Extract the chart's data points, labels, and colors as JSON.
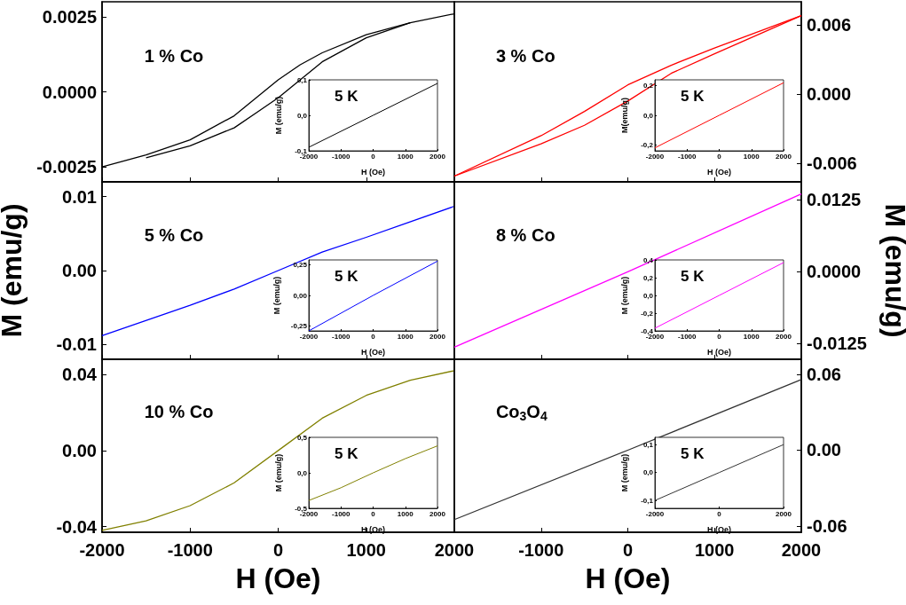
{
  "chart_data": [
    {
      "type": "line",
      "annotations": [
        "1 % Co"
      ],
      "xlim": [
        -2000,
        2000
      ],
      "xticks": [
        -2000,
        -1000,
        0,
        1000,
        2000
      ],
      "ylim": [
        -0.003,
        0.003
      ],
      "yticks": [
        -0.0025,
        {
          "value": 0,
          "label": "0.0000"
        },
        0.0025
      ],
      "tick_labels": "y",
      "series": [
        {
          "color": "#000000",
          "x": [
            -2000,
            -1500,
            -1000,
            -500,
            -250,
            0,
            250,
            500,
            1000,
            1500,
            2000
          ],
          "values": [
            -0.0025,
            -0.0021,
            -0.0016,
            -0.0008,
            -0.0002,
            0.0004,
            0.0009,
            0.0013,
            0.0019,
            0.0023,
            0.0026
          ]
        },
        {
          "color": "#000000",
          "x": [
            -1500,
            -1000,
            -500,
            -250,
            0,
            250,
            500,
            1000,
            1500
          ],
          "values": [
            -0.0022,
            -0.0018,
            -0.0012,
            -0.0007,
            -0.0002,
            0.0004,
            0.001,
            0.0018,
            0.0023
          ]
        }
      ]
    },
    {
      "type": "line",
      "annotations": [
        "5 K"
      ],
      "xlabel": "H (Oe)",
      "ylabel": "M (emu/g)",
      "xlim": [
        -2000,
        2000
      ],
      "xticks": [
        -2000,
        -1000,
        0,
        1000,
        2000
      ],
      "ylim": [
        -0.1,
        0.1
      ],
      "yticks": [
        {
          "value": -0.1,
          "label": "-0,1"
        },
        {
          "value": 0,
          "label": "0,0"
        },
        {
          "value": 0.1,
          "label": "0,1"
        }
      ],
      "series": [
        {
          "color": "#000000",
          "x": [
            -2000,
            0,
            2000
          ],
          "values": [
            -0.09,
            0,
            0.09
          ]
        }
      ]
    },
    {
      "type": "line",
      "annotations": [
        "3 % Co"
      ],
      "xlim": [
        -2000,
        2000
      ],
      "xticks": [
        -2000,
        -1000,
        0,
        1000,
        2000
      ],
      "ylim": [
        -0.0076,
        0.008
      ],
      "yticks": [
        -0.006,
        {
          "value": 0,
          "label": "0.000"
        },
        0.006
      ],
      "tick_labels": "y",
      "series": [
        {
          "color": "#ff0000",
          "x": [
            -2000,
            -1000,
            -500,
            0,
            500,
            1000,
            2000
          ],
          "values": [
            -0.0071,
            -0.0036,
            -0.0015,
            0.0008,
            0.0025,
            0.004,
            0.0068
          ]
        },
        {
          "color": "#ff0000",
          "x": [
            -2000,
            -1000,
            -500,
            0,
            500,
            1000,
            2000
          ],
          "values": [
            -0.0071,
            -0.0043,
            -0.0027,
            -0.0006,
            0.0018,
            0.0035,
            0.0068
          ]
        }
      ]
    },
    {
      "type": "line",
      "annotations": [
        "5 K"
      ],
      "xlabel": "H (Oe)",
      "ylabel": "M(emu/g)",
      "xlim": [
        -2000,
        2000
      ],
      "xticks": [
        -2000,
        -1000,
        0,
        1000,
        2000
      ],
      "ylim": [
        -0.24,
        0.24
      ],
      "yticks": [
        {
          "value": -0.2,
          "label": "-0,2"
        },
        {
          "value": 0,
          "label": "0,0"
        },
        {
          "value": 0.2,
          "label": "0,2"
        }
      ],
      "series": [
        {
          "color": "#ff0000",
          "x": [
            -2000,
            0,
            2000
          ],
          "values": [
            -0.22,
            0,
            0.22
          ]
        }
      ]
    },
    {
      "type": "line",
      "annotations": [
        "5 % Co"
      ],
      "ylabel": "M (emu/g)",
      "xlim": [
        -2000,
        2000
      ],
      "xticks": [
        -2000,
        -1000,
        0,
        1000,
        2000
      ],
      "ylim": [
        -0.012,
        0.012
      ],
      "yticks": [
        -0.01,
        {
          "value": 0,
          "label": "0.00"
        },
        0.01
      ],
      "tick_labels": "y",
      "series": [
        {
          "color": "#0000ff",
          "x": [
            -2000,
            -1000,
            -500,
            0,
            500,
            1000,
            2000
          ],
          "values": [
            -0.0088,
            -0.0047,
            -0.0025,
            0,
            0.0025,
            0.0045,
            0.0087
          ]
        }
      ]
    },
    {
      "type": "line",
      "annotations": [
        "5 K"
      ],
      "xlabel": "H (Oe)",
      "ylabel": "M (emu/g)",
      "xlim": [
        -2000,
        2000
      ],
      "xticks": [
        -2000,
        -1000,
        0,
        1000,
        2000
      ],
      "ylim": [
        -0.29,
        0.29
      ],
      "yticks": [
        {
          "value": -0.25,
          "label": "-0,25"
        },
        {
          "value": 0,
          "label": "0,00"
        },
        {
          "value": 0.25,
          "label": "0,25"
        }
      ],
      "series": [
        {
          "color": "#0000ff",
          "x": [
            -2000,
            0,
            2000
          ],
          "values": [
            -0.29,
            0,
            0.28
          ]
        }
      ]
    },
    {
      "type": "line",
      "annotations": [
        "8 % Co"
      ],
      "ylabel": "M (emu/g)",
      "xlim": [
        -2000,
        2000
      ],
      "xticks": [
        -2000,
        -1000,
        0,
        1000,
        2000
      ],
      "ylim": [
        -0.0152,
        0.0156
      ],
      "yticks": [
        -0.0125,
        {
          "value": 0,
          "label": "0.0000"
        },
        0.0125
      ],
      "tick_labels": "y",
      "series": [
        {
          "color": "#ff00ff",
          "x": [
            -2000,
            0,
            2000
          ],
          "values": [
            -0.0131,
            0,
            0.0135
          ]
        }
      ]
    },
    {
      "type": "line",
      "annotations": [
        "5 K"
      ],
      "xlabel": "H (Oe)",
      "ylabel": "M (emu/g)",
      "xlim": [
        -2000,
        2000
      ],
      "xticks": [
        -2000,
        -1000,
        0,
        1000,
        2000
      ],
      "ylim": [
        -0.4,
        0.4
      ],
      "yticks": [
        {
          "value": -0.4,
          "label": "-0,4"
        },
        {
          "value": -0.2,
          "label": "-0,2"
        },
        {
          "value": 0,
          "label": "0,0"
        },
        {
          "value": 0.2,
          "label": "0,2"
        },
        {
          "value": 0.4,
          "label": "0,4"
        }
      ],
      "series": [
        {
          "color": "#ff00ff",
          "x": [
            -2000,
            0,
            2000
          ],
          "values": [
            -0.37,
            0,
            0.37
          ]
        }
      ]
    },
    {
      "type": "line",
      "annotations": [
        "10 % Co"
      ],
      "xlabel": "H (Oe)",
      "xlim": [
        -2000,
        2000
      ],
      "xticks": [
        -2000,
        -1000,
        0,
        1000,
        2000
      ],
      "ylim": [
        -0.043,
        0.048
      ],
      "yticks": [
        -0.04,
        {
          "value": 0,
          "label": "0.00"
        },
        0.04
      ],
      "series": [
        {
          "color": "#808000",
          "x": [
            -2000,
            -1500,
            -1000,
            -500,
            0,
            500,
            1000,
            1500,
            2000
          ],
          "values": [
            -0.042,
            -0.037,
            -0.029,
            -0.017,
            0,
            0.017,
            0.029,
            0.037,
            0.042
          ]
        }
      ]
    },
    {
      "type": "line",
      "annotations": [
        "5 K"
      ],
      "xlabel": "H (Oe)",
      "ylabel": "M (emu/g)",
      "xlim": [
        -2000,
        2000
      ],
      "xticks": [
        -2000,
        -1000,
        0,
        1000,
        2000
      ],
      "ylim": [
        -0.5,
        0.5
      ],
      "yticks": [
        {
          "value": -0.5,
          "label": "-0,5"
        },
        {
          "value": 0,
          "label": "0,0"
        },
        {
          "value": 0.5,
          "label": "0,5"
        }
      ],
      "series": [
        {
          "color": "#808000",
          "x": [
            -2000,
            -1000,
            0,
            1000,
            2000
          ],
          "values": [
            -0.39,
            -0.21,
            0,
            0.2,
            0.38
          ]
        }
      ]
    },
    {
      "type": "line",
      "annotations": [
        "Co$_{3}$O$_{4}$"
      ],
      "xlabel": "H (Oe)",
      "xlim": [
        -2000,
        2000
      ],
      "xticks": [
        -1000,
        0,
        1000,
        2000
      ],
      "ylim": [
        -0.065,
        0.072
      ],
      "yticks": [
        -0.06,
        {
          "value": 0,
          "label": "0.00"
        },
        0.06
      ],
      "series": [
        {
          "color": "#333333",
          "x": [
            -2000,
            0,
            2000
          ],
          "values": [
            -0.055,
            0,
            0.056
          ]
        }
      ]
    },
    {
      "type": "line",
      "annotations": [
        "5 K"
      ],
      "xlabel": "H (Oe)",
      "ylabel": "M (emu/g)",
      "xlim": [
        -2000,
        2000
      ],
      "xticks": [
        -2000,
        0,
        2000
      ],
      "ylim": [
        -0.128,
        0.126
      ],
      "yticks": [
        {
          "value": -0.1,
          "label": "-0,1"
        },
        {
          "value": 0,
          "label": "0,0"
        },
        {
          "value": 0.1,
          "label": "0,1"
        }
      ],
      "series": [
        {
          "color": "#333333",
          "x": [
            -2000,
            0,
            2000
          ],
          "values": [
            -0.1,
            0,
            0.1
          ]
        }
      ]
    }
  ]
}
